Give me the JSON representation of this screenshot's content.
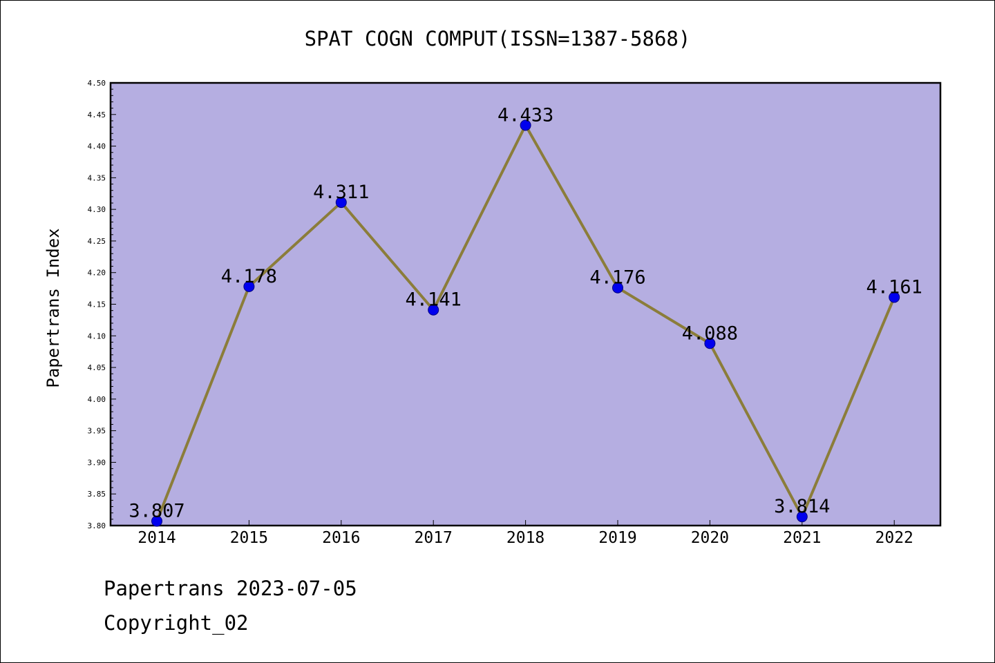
{
  "chart_data": {
    "type": "line",
    "title": "SPAT COGN COMPUT(ISSN=1387-5868)",
    "xlabel": "",
    "ylabel": "Papertrans Index",
    "x": [
      "2014",
      "2015",
      "2016",
      "2017",
      "2018",
      "2019",
      "2020",
      "2021",
      "2022"
    ],
    "values": [
      3.807,
      4.178,
      4.311,
      4.141,
      4.433,
      4.176,
      4.088,
      3.814,
      4.161
    ],
    "data_labels": [
      "3.807",
      "4.178",
      "4.311",
      "4.141",
      "4.433",
      "4.176",
      "4.088",
      "3.814",
      "4.161"
    ],
    "ylim": [
      3.8,
      4.5
    ],
    "yticks": [
      "3.80",
      "3.85",
      "3.90",
      "3.95",
      "4.00",
      "4.05",
      "4.10",
      "4.15",
      "4.20",
      "4.25",
      "4.30",
      "4.35",
      "4.40",
      "4.45",
      "4.50"
    ],
    "grid": false,
    "legend": "none",
    "colors": {
      "plot_background": "#b5aee1",
      "line": "#8b7d3a",
      "marker": "#0000ee",
      "marker_edge": "#000080"
    }
  },
  "footer": {
    "line1": "Papertrans 2023-07-05",
    "line2": "Copyright_02"
  }
}
